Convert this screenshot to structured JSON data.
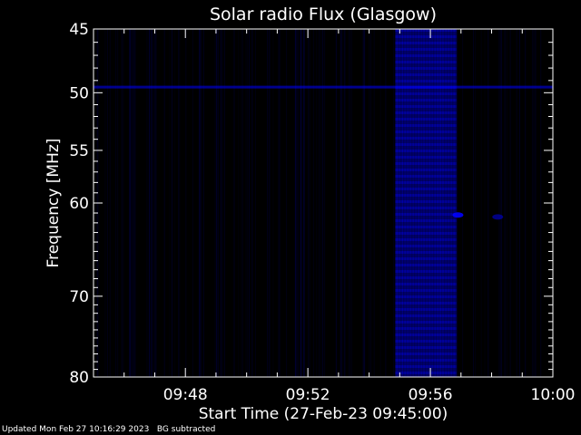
{
  "chart_data": {
    "type": "heatmap",
    "title": "Solar radio Flux (Glasgow)",
    "xlabel": "Start Time (27-Feb-23 09:45:00)",
    "ylabel": "Frequency [MHz]",
    "x_unit": "minutes after 09:45:00",
    "xlim": [
      0,
      15
    ],
    "ylim": [
      45,
      80
    ],
    "y_scale": "log",
    "y_inverted": true,
    "x_ticks": [
      {
        "value": 3,
        "label": "09:48"
      },
      {
        "value": 7,
        "label": "09:52"
      },
      {
        "value": 11,
        "label": "09:56"
      },
      {
        "value": 15,
        "label": "10:00"
      }
    ],
    "y_ticks": [
      {
        "value": 45,
        "label": "45"
      },
      {
        "value": 50,
        "label": "50"
      },
      {
        "value": 55,
        "label": "55"
      },
      {
        "value": 60,
        "label": "60"
      },
      {
        "value": 70,
        "label": "70"
      },
      {
        "value": 80,
        "label": "80"
      }
    ],
    "colormap": [
      "#000000",
      "#0000ff"
    ],
    "background_level": 0.12,
    "features": [
      {
        "kind": "burst",
        "x_start": 9.85,
        "x_end": 11.85,
        "y_start": 45,
        "y_end": 80,
        "intensity": 0.75
      },
      {
        "kind": "interference_line",
        "y": 49.5,
        "x_start": 0,
        "x_end": 15,
        "intensity": 0.55
      },
      {
        "kind": "spot",
        "x": 11.9,
        "y": 61.2,
        "intensity": 0.9
      },
      {
        "kind": "spot",
        "x": 13.2,
        "y": 61.4,
        "intensity": 0.5
      }
    ]
  },
  "footer": {
    "updated": "Updated Mon Feb 27 10:16:29 2023",
    "note": "BG subtracted"
  },
  "colors": {
    "axis": "#ffffff",
    "text": "#ffffff",
    "background": "#000000",
    "signal": "#0000ff"
  }
}
